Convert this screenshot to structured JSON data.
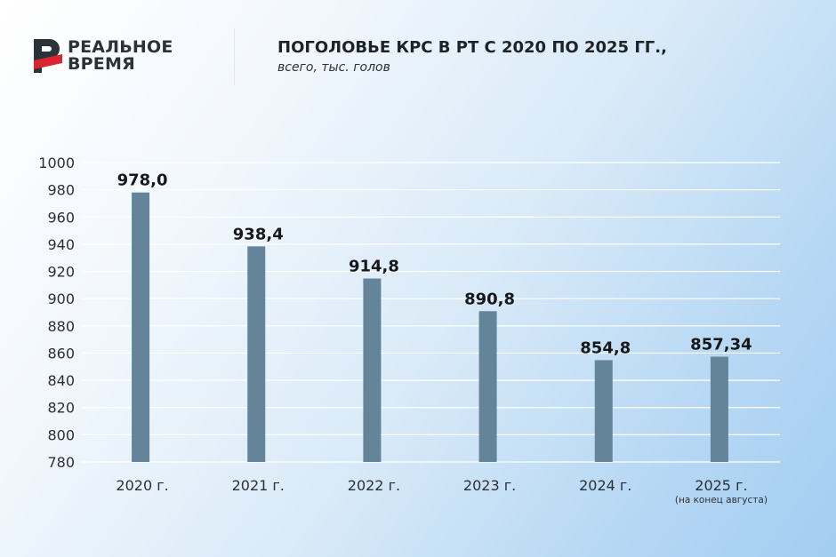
{
  "brand": {
    "line1": "РЕАЛЬНОЕ",
    "line2": "ВРЕМЯ",
    "mark_color": "#d9262e"
  },
  "header": {
    "title": "ПОГОЛОВЬЕ КРС В РТ С 2020 ПО 2025 ГГ.,",
    "subtitle": "всего, тыс. голов"
  },
  "colors": {
    "bar": "#638499",
    "grid": "#ffffff"
  },
  "chart_data": {
    "type": "bar",
    "title": "ПОГОЛОВЬЕ КРС В РТ С 2020 ПО 2025 ГГ.,",
    "subtitle": "всего, тыс. голов",
    "categories": [
      "2020 г.",
      "2021 г.",
      "2022 г.",
      "2023 г.",
      "2024 г.",
      "2025 г."
    ],
    "category_notes": [
      "",
      "",
      "",
      "",
      "",
      "(на конец августа)"
    ],
    "values": [
      978.0,
      938.4,
      914.8,
      890.8,
      854.8,
      857.34
    ],
    "value_labels": [
      "978,0",
      "938,4",
      "914,8",
      "890,8",
      "854,8",
      "857,34"
    ],
    "ylim": [
      780,
      1000
    ],
    "yticks": [
      780,
      800,
      820,
      840,
      860,
      880,
      900,
      920,
      940,
      960,
      980,
      1000
    ],
    "grid": true,
    "legend": "none",
    "xlabel": "",
    "ylabel": ""
  }
}
